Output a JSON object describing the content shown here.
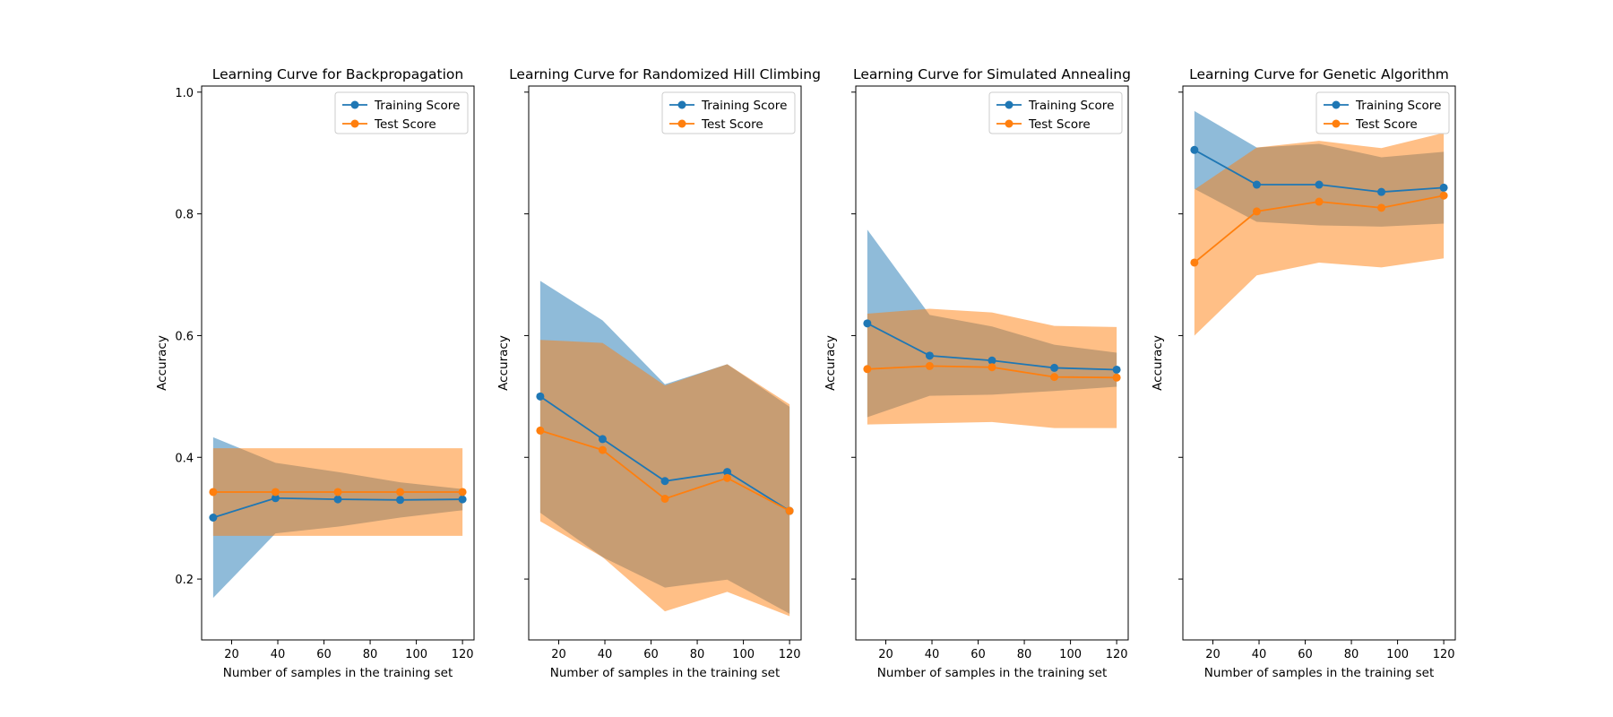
{
  "colors": {
    "training": "#1f77b4",
    "test": "#ff7f0e",
    "training_band": "#1f77b4",
    "test_band": "#ff7f0e"
  },
  "chart_data": [
    {
      "type": "line",
      "title": "Learning Curve for Backpropagation",
      "xlabel": "Number of samples in the training set",
      "ylabel": "Accuracy",
      "xlim": [
        7,
        125
      ],
      "ylim": [
        0.1,
        1.01
      ],
      "xticks": [
        20,
        40,
        60,
        80,
        100,
        120
      ],
      "yticks": [
        0.2,
        0.4,
        0.6,
        0.8,
        1.0
      ],
      "show_yticklabels": true,
      "grid": false,
      "legend": "top-right",
      "x": [
        12,
        39,
        66,
        93,
        120
      ],
      "series": [
        {
          "name": "Training Score",
          "values": [
            0.301,
            0.333,
            0.331,
            0.33,
            0.331
          ],
          "lower": [
            0.169,
            0.275,
            0.286,
            0.301,
            0.313
          ],
          "upper": [
            0.433,
            0.391,
            0.376,
            0.359,
            0.348
          ]
        },
        {
          "name": "Test Score",
          "values": [
            0.343,
            0.343,
            0.343,
            0.343,
            0.343
          ],
          "lower": [
            0.271,
            0.271,
            0.271,
            0.271,
            0.271
          ],
          "upper": [
            0.415,
            0.415,
            0.415,
            0.415,
            0.415
          ]
        }
      ]
    },
    {
      "type": "line",
      "title": "Learning Curve for Randomized Hill Climbing",
      "xlabel": "Number of samples in the training set",
      "ylabel": "Accuracy",
      "xlim": [
        7,
        125
      ],
      "ylim": [
        0.1,
        1.01
      ],
      "xticks": [
        20,
        40,
        60,
        80,
        100,
        120
      ],
      "yticks": [
        0.2,
        0.4,
        0.6,
        0.8,
        1.0
      ],
      "show_yticklabels": false,
      "grid": false,
      "legend": "top-right",
      "x": [
        12,
        39,
        66,
        93,
        120
      ],
      "series": [
        {
          "name": "Training Score",
          "values": [
            0.5,
            0.43,
            0.361,
            0.376,
            0.312
          ],
          "lower": [
            0.309,
            0.236,
            0.186,
            0.199,
            0.143
          ],
          "upper": [
            0.69,
            0.625,
            0.52,
            0.553,
            0.483
          ]
        },
        {
          "name": "Test Score",
          "values": [
            0.444,
            0.412,
            0.332,
            0.366,
            0.312
          ],
          "lower": [
            0.295,
            0.236,
            0.147,
            0.179,
            0.139
          ],
          "upper": [
            0.593,
            0.588,
            0.518,
            0.553,
            0.487
          ]
        }
      ]
    },
    {
      "type": "line",
      "title": "Learning Curve for Simulated Annealing",
      "xlabel": "Number of samples in the training set",
      "ylabel": "Accuracy",
      "xlim": [
        7,
        125
      ],
      "ylim": [
        0.1,
        1.01
      ],
      "xticks": [
        20,
        40,
        60,
        80,
        100,
        120
      ],
      "yticks": [
        0.2,
        0.4,
        0.6,
        0.8,
        1.0
      ],
      "show_yticklabels": false,
      "grid": false,
      "legend": "top-right",
      "x": [
        12,
        39,
        66,
        93,
        120
      ],
      "series": [
        {
          "name": "Training Score",
          "values": [
            0.62,
            0.567,
            0.559,
            0.547,
            0.544
          ],
          "lower": [
            0.466,
            0.501,
            0.503,
            0.509,
            0.516
          ],
          "upper": [
            0.774,
            0.634,
            0.615,
            0.585,
            0.572
          ]
        },
        {
          "name": "Test Score",
          "values": [
            0.545,
            0.55,
            0.548,
            0.532,
            0.531
          ],
          "lower": [
            0.454,
            0.456,
            0.458,
            0.448,
            0.448
          ],
          "upper": [
            0.636,
            0.644,
            0.638,
            0.616,
            0.614
          ]
        }
      ]
    },
    {
      "type": "line",
      "title": "Learning Curve for Genetic Algorithm",
      "xlabel": "Number of samples in the training set",
      "ylabel": "Accuracy",
      "xlim": [
        7,
        125
      ],
      "ylim": [
        0.1,
        1.01
      ],
      "xticks": [
        20,
        40,
        60,
        80,
        100,
        120
      ],
      "yticks": [
        0.2,
        0.4,
        0.6,
        0.8,
        1.0
      ],
      "show_yticklabels": false,
      "grid": false,
      "legend": "top-right",
      "x": [
        12,
        39,
        66,
        93,
        120
      ],
      "series": [
        {
          "name": "Training Score",
          "values": [
            0.905,
            0.848,
            0.848,
            0.836,
            0.843
          ],
          "lower": [
            0.841,
            0.787,
            0.781,
            0.779,
            0.784
          ],
          "upper": [
            0.969,
            0.909,
            0.915,
            0.893,
            0.902
          ]
        },
        {
          "name": "Test Score",
          "values": [
            0.72,
            0.804,
            0.82,
            0.81,
            0.83
          ],
          "lower": [
            0.6,
            0.699,
            0.72,
            0.712,
            0.727
          ],
          "upper": [
            0.84,
            0.909,
            0.92,
            0.908,
            0.933
          ]
        }
      ]
    }
  ]
}
